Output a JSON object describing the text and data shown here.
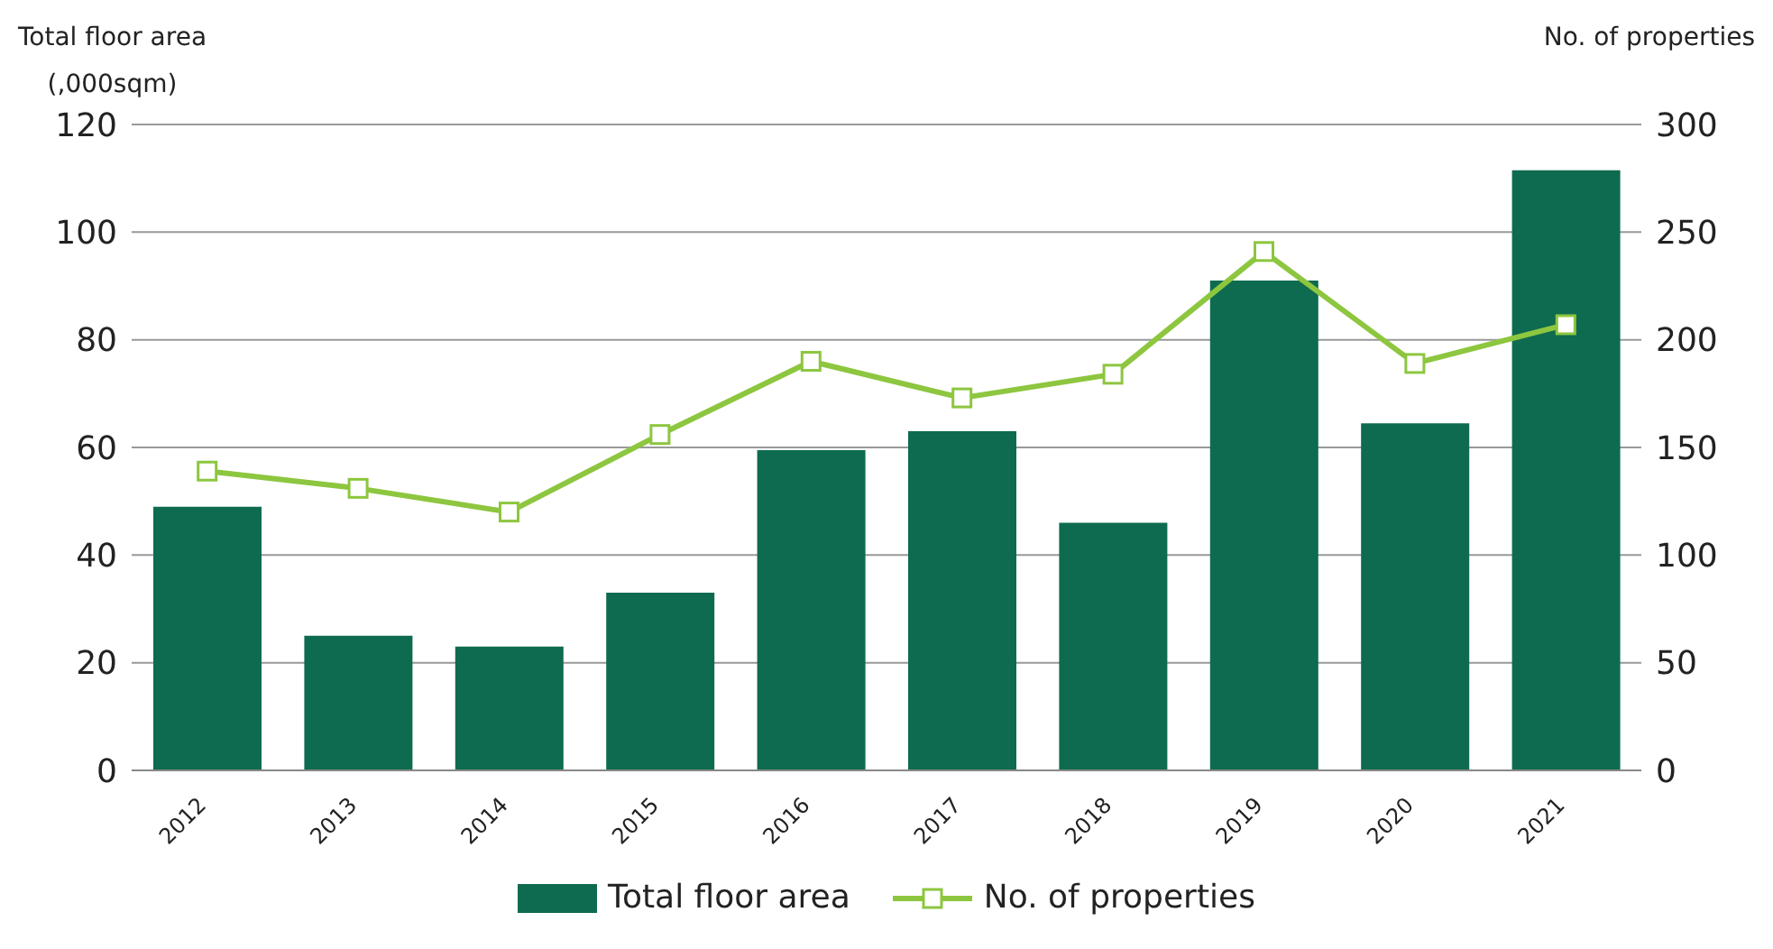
{
  "chart_data": {
    "type": "bar",
    "categories": [
      "2012",
      "2013",
      "2014",
      "2015",
      "2016",
      "2017",
      "2018",
      "2019",
      "2020",
      "2021"
    ],
    "ylabel": "Total floor area\n(,000sqm)",
    "y2label": "No. of properties",
    "series": [
      {
        "name": "Total floor area",
        "color": "#0e6b4f",
        "values": [
          49,
          25,
          23,
          33,
          59.5,
          63,
          46,
          91,
          64.5,
          111.5
        ]
      },
      {
        "name": "No. of properties",
        "type": "line",
        "axis": "y2",
        "color": "#8dc63f",
        "marker": "square",
        "values": [
          139,
          131,
          120,
          156,
          190,
          173,
          184,
          241,
          189,
          207
        ]
      }
    ],
    "ylim": [
      0,
      120
    ],
    "yticks": [
      0,
      20,
      40,
      60,
      80,
      100,
      120
    ],
    "y2lim": [
      0,
      300
    ],
    "y2ticks": [
      0,
      50,
      100,
      150,
      200,
      250,
      300
    ],
    "grid": "y",
    "legend": "bottom"
  }
}
